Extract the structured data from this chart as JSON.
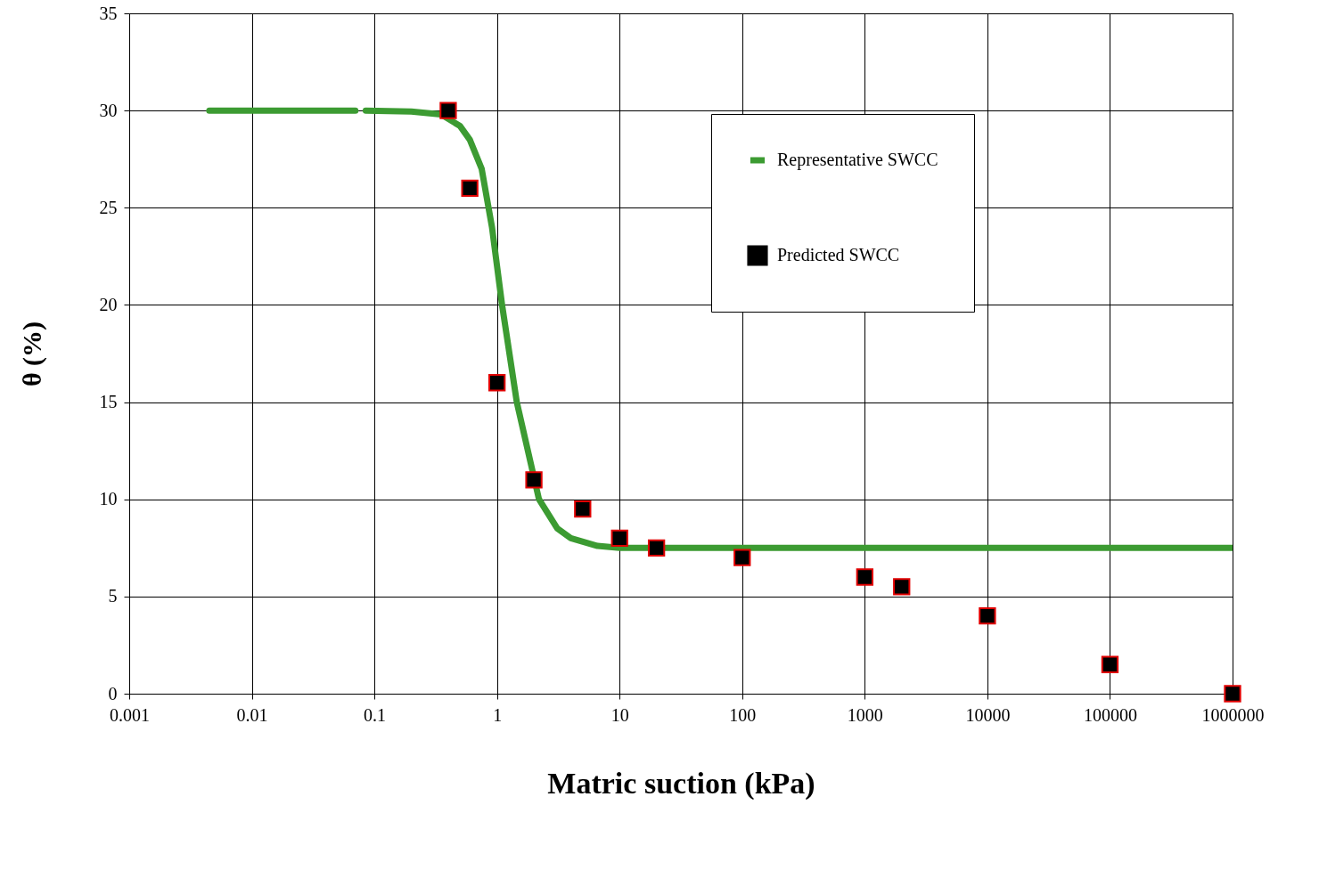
{
  "chart_data": {
    "type": "scatter",
    "xlabel": "Matric suction (kPa)",
    "ylabel": "θ (%)",
    "log": "x",
    "xlim": [
      0.001,
      1000000
    ],
    "xticks": [
      0.001,
      0.01,
      0.1,
      1,
      10,
      100,
      1000,
      10000,
      100000,
      1000000
    ],
    "ylim": [
      0,
      35
    ],
    "yticks": [
      0,
      5,
      10,
      15,
      20,
      25,
      30,
      35
    ],
    "grid": true,
    "legend": "top right",
    "series": [
      {
        "name": "Representative SWCC",
        "type": "line",
        "color": "#3c9b32",
        "marker": "none",
        "x": [
          0.0045,
          0.07,
          0.078,
          0.085,
          0.2,
          0.35,
          0.5,
          0.6,
          0.75,
          0.91,
          1.1,
          1.45,
          2.2,
          3.1,
          4,
          6.6,
          10,
          1000000
        ],
        "values": [
          30,
          30,
          null,
          30,
          29.95,
          29.8,
          29.2,
          28.5,
          27,
          24,
          20,
          15,
          10,
          8.5,
          8,
          7.6,
          7.5,
          7.5
        ]
      },
      {
        "name": "Predicted SWCC",
        "color": "#000000",
        "marker": "square",
        "x": [
          0.4,
          0.6,
          1,
          2,
          5,
          10,
          20,
          100,
          1000,
          2000,
          10000,
          100000,
          1000000
        ],
        "values": [
          30,
          26,
          16,
          11,
          9.5,
          8,
          7.5,
          7,
          6,
          5.5,
          4,
          1.5,
          0
        ]
      }
    ]
  }
}
